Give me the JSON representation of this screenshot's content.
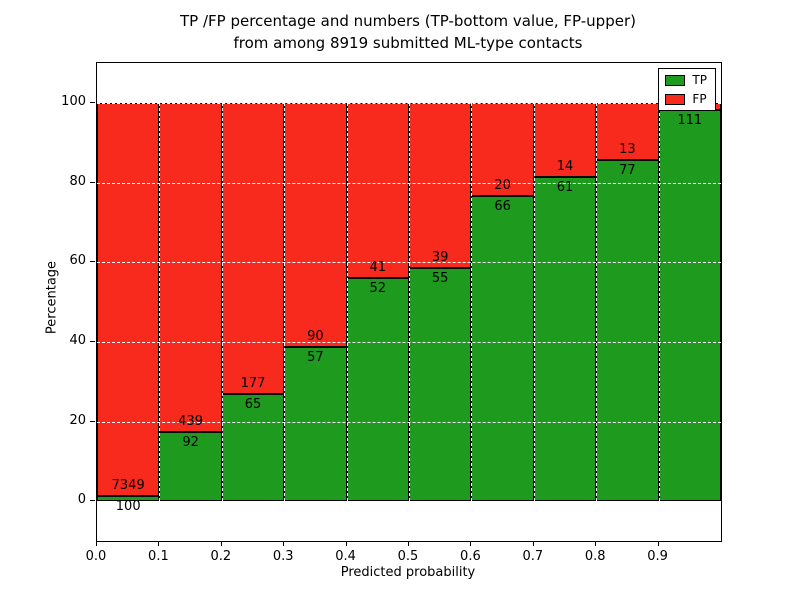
{
  "chart_data": {
    "type": "bar",
    "stacked": true,
    "title_line1": "TP /FP percentage and numbers (TP-bottom value, FP-upper)",
    "title_line2": "from among 8919 submitted ML-type contacts",
    "xlabel": "Predicted probability",
    "ylabel": "Percentage",
    "xlim": [
      0,
      1
    ],
    "ylim": [
      -10,
      110
    ],
    "x_ticks": [
      "0.0",
      "0.1",
      "0.2",
      "0.3",
      "0.4",
      "0.5",
      "0.6",
      "0.7",
      "0.8",
      "0.9"
    ],
    "y_ticks": [
      0,
      20,
      40,
      60,
      80,
      100
    ],
    "grid": true,
    "legend_position": "upper right",
    "colors": {
      "tp": "#1e9b1e",
      "fp": "#f8291d"
    },
    "legend": [
      {
        "label": "TP",
        "color": "#1e9b1e"
      },
      {
        "label": "FP",
        "color": "#f8291d"
      }
    ],
    "bins": [
      {
        "x0": 0.0,
        "x1": 0.1,
        "tp": 100,
        "fp": 7349,
        "tp_pct": 1.3
      },
      {
        "x0": 0.1,
        "x1": 0.2,
        "tp": 92,
        "fp": 439,
        "tp_pct": 17.3
      },
      {
        "x0": 0.2,
        "x1": 0.3,
        "tp": 65,
        "fp": 177,
        "tp_pct": 26.9
      },
      {
        "x0": 0.3,
        "x1": 0.4,
        "tp": 57,
        "fp": 90,
        "tp_pct": 38.8
      },
      {
        "x0": 0.4,
        "x1": 0.5,
        "tp": 52,
        "fp": 41,
        "tp_pct": 55.9
      },
      {
        "x0": 0.5,
        "x1": 0.6,
        "tp": 55,
        "fp": 39,
        "tp_pct": 58.5
      },
      {
        "x0": 0.6,
        "x1": 0.7,
        "tp": 66,
        "fp": 20,
        "tp_pct": 76.7
      },
      {
        "x0": 0.7,
        "x1": 0.8,
        "tp": 61,
        "fp": 14,
        "tp_pct": 81.3
      },
      {
        "x0": 0.8,
        "x1": 0.9,
        "tp": 77,
        "fp": 13,
        "tp_pct": 85.6
      },
      {
        "x0": 0.9,
        "x1": 1.0,
        "tp": 111,
        "fp": null,
        "tp_pct": 98.2
      }
    ]
  }
}
